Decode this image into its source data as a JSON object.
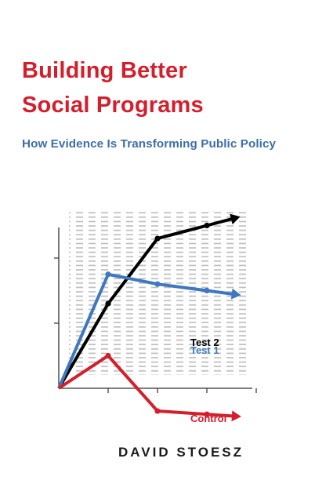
{
  "cover": {
    "title_line1": "Building Better",
    "title_line2": "Social Programs",
    "subtitle": "How Evidence Is Transforming Public Policy",
    "author": "DAVID STOESZ"
  },
  "colors": {
    "title": "#d41e2b",
    "subtitle": "#3e6ea8",
    "test2": "#000000",
    "test1": "#3e78c0",
    "control": "#d41e2b",
    "axis": "#333333",
    "table_text": "#b0b0b0"
  },
  "chart_data": {
    "type": "line",
    "x": [
      0,
      1,
      2,
      3
    ],
    "series": [
      {
        "name": "Test 2",
        "values": [
          0,
          1.3,
          2.3,
          2.5
        ]
      },
      {
        "name": "Test 1",
        "values": [
          0,
          1.75,
          1.6,
          1.5
        ]
      },
      {
        "name": "Control",
        "values": [
          0,
          0.5,
          -0.35,
          -0.4
        ]
      }
    ],
    "ylim": [
      -0.6,
      3
    ],
    "grid": false
  }
}
